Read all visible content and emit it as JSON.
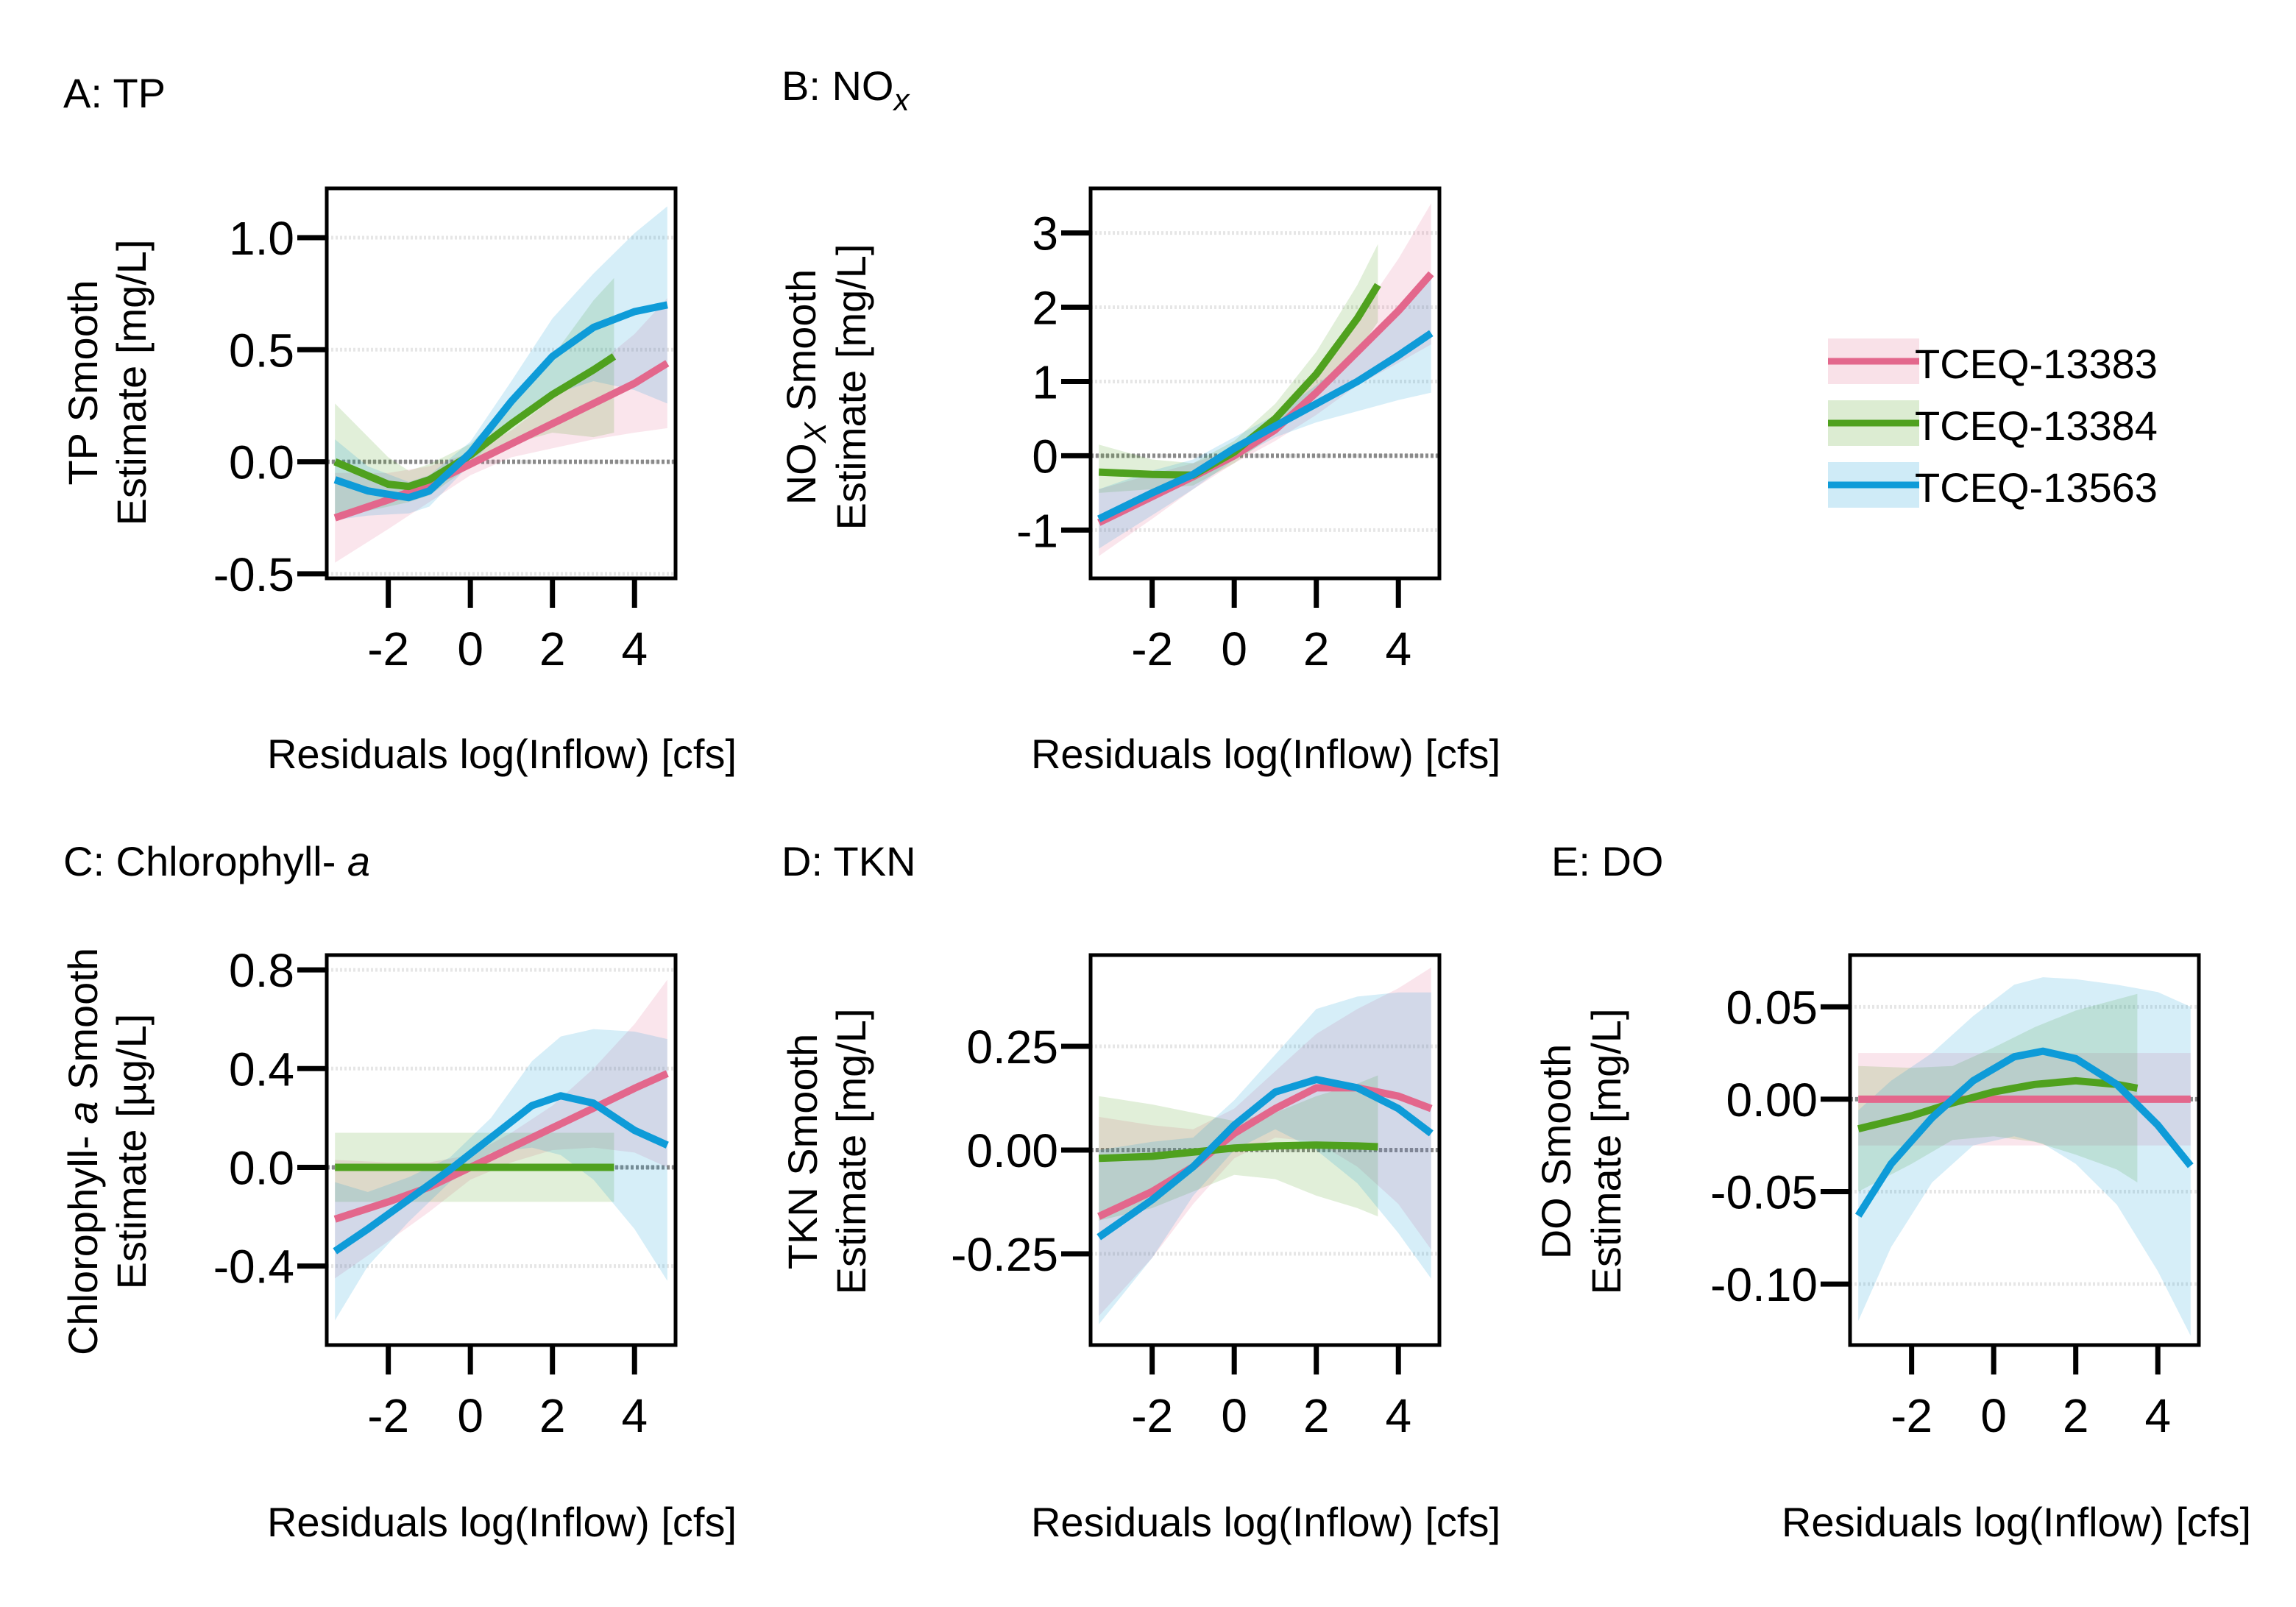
{
  "colors": {
    "TCEQ-13383": "#E3678C",
    "TCEQ-13384": "#4FA11E",
    "TCEQ-13563": "#0E9BD8",
    "axis": "#000000",
    "zero_line": "#8a8a8a",
    "grid": "#e6e6e6"
  },
  "legend": {
    "items": [
      {
        "name": "TCEQ-13383",
        "color": "#E3678C"
      },
      {
        "name": "TCEQ-13384",
        "color": "#4FA11E"
      },
      {
        "name": "TCEQ-13563",
        "color": "#0E9BD8"
      }
    ],
    "placement": "right"
  },
  "chart_data": [
    {
      "type": "line",
      "panel": "A",
      "title": "A: TP",
      "ylabel_line1": "TP Smooth",
      "ylabel_line2": "Estimate [mg/L]",
      "xlabel": "Residuals log(Inflow) [cfs]",
      "xlim": [
        -3.5,
        5.0
      ],
      "ylim": [
        -0.52,
        1.22
      ],
      "xticks": [
        -2,
        0,
        2,
        4
      ],
      "xtick_labels": [
        "-2",
        "0",
        "2",
        "4"
      ],
      "yticks": [
        -0.5,
        0.0,
        0.5,
        1.0
      ],
      "ytick_labels": [
        "-0.5",
        "0.0",
        "0.5",
        "1.0"
      ],
      "grid": "horizontal",
      "series": [
        {
          "name": "TCEQ-13383",
          "x": [
            -3.3,
            -2,
            -1,
            0,
            1,
            2,
            3,
            4,
            4.8
          ],
          "y": [
            -0.25,
            -0.17,
            -0.1,
            -0.01,
            0.08,
            0.17,
            0.26,
            0.35,
            0.44
          ],
          "lower": [
            -0.45,
            -0.3,
            -0.18,
            -0.06,
            0.02,
            0.06,
            0.1,
            0.13,
            0.15
          ],
          "upper": [
            -0.05,
            -0.05,
            -0.02,
            0.04,
            0.14,
            0.28,
            0.42,
            0.57,
            0.73
          ]
        },
        {
          "name": "TCEQ-13384",
          "x": [
            -3.3,
            -2,
            -1.5,
            -1,
            0,
            1,
            2,
            3,
            3.5
          ],
          "y": [
            0.0,
            -0.1,
            -0.11,
            -0.08,
            0.03,
            0.17,
            0.3,
            0.41,
            0.47
          ],
          "lower": [
            -0.25,
            -0.2,
            -0.18,
            -0.15,
            -0.02,
            0.08,
            0.13,
            0.11,
            0.13
          ],
          "upper": [
            0.26,
            0.02,
            -0.04,
            -0.01,
            0.08,
            0.26,
            0.47,
            0.72,
            0.82
          ]
        },
        {
          "name": "TCEQ-13563",
          "x": [
            -3.3,
            -2.5,
            -1.5,
            -1,
            0,
            1,
            2,
            3,
            4,
            4.8
          ],
          "y": [
            -0.08,
            -0.13,
            -0.16,
            -0.13,
            0.04,
            0.27,
            0.47,
            0.6,
            0.67,
            0.7
          ],
          "lower": [
            -0.26,
            -0.24,
            -0.23,
            -0.2,
            -0.01,
            0.18,
            0.3,
            0.36,
            0.32,
            0.26
          ],
          "upper": [
            0.1,
            -0.02,
            -0.09,
            -0.06,
            0.09,
            0.36,
            0.64,
            0.84,
            1.02,
            1.14
          ]
        }
      ]
    },
    {
      "type": "line",
      "panel": "B",
      "title_main": "B: NO",
      "title_sub": "x",
      "ylabel_line1_main": "NO",
      "ylabel_line1_sub": "X",
      "ylabel_line1_rest": " Smooth",
      "ylabel_line2": "Estimate [mg/L]",
      "xlabel": "Residuals log(Inflow) [cfs]",
      "xlim": [
        -3.5,
        5.0
      ],
      "ylim": [
        -1.65,
        3.6
      ],
      "xticks": [
        -2,
        0,
        2,
        4
      ],
      "xtick_labels": [
        "-2",
        "0",
        "2",
        "4"
      ],
      "yticks": [
        -1,
        0,
        1,
        2,
        3
      ],
      "ytick_labels": [
        "-1",
        "0",
        "1",
        "2",
        "3"
      ],
      "grid": "horizontal",
      "series": [
        {
          "name": "TCEQ-13383",
          "x": [
            -3.3,
            -2,
            -1,
            0,
            1,
            2,
            3,
            4,
            4.8
          ],
          "y": [
            -0.9,
            -0.55,
            -0.28,
            0.0,
            0.35,
            0.85,
            1.4,
            1.95,
            2.45
          ],
          "lower": [
            -1.35,
            -0.85,
            -0.45,
            -0.1,
            0.2,
            0.55,
            0.95,
            1.25,
            1.5
          ],
          "upper": [
            -0.45,
            -0.25,
            -0.1,
            0.1,
            0.5,
            1.15,
            1.85,
            2.65,
            3.4
          ]
        },
        {
          "name": "TCEQ-13384",
          "x": [
            -3.3,
            -2,
            -1,
            0,
            1,
            2,
            3,
            3.5
          ],
          "y": [
            -0.22,
            -0.25,
            -0.26,
            0.05,
            0.5,
            1.1,
            1.85,
            2.3
          ],
          "lower": [
            -0.5,
            -0.45,
            -0.4,
            -0.1,
            0.3,
            0.8,
            1.4,
            1.8
          ],
          "upper": [
            0.15,
            -0.05,
            -0.1,
            0.2,
            0.7,
            1.4,
            2.3,
            2.85
          ]
        },
        {
          "name": "TCEQ-13563",
          "x": [
            -3.3,
            -2,
            -1,
            0,
            1,
            2,
            3,
            4,
            4.8
          ],
          "y": [
            -0.85,
            -0.5,
            -0.25,
            0.1,
            0.4,
            0.7,
            1.0,
            1.35,
            1.65
          ],
          "lower": [
            -1.25,
            -0.8,
            -0.45,
            -0.05,
            0.25,
            0.45,
            0.6,
            0.75,
            0.85
          ],
          "upper": [
            -0.45,
            -0.2,
            -0.05,
            0.25,
            0.55,
            0.95,
            1.4,
            1.95,
            2.45
          ]
        }
      ]
    },
    {
      "type": "line",
      "panel": "C",
      "title_main": "C: Chlorophyll- ",
      "title_italic": "a",
      "ylabel_line1_main": "Chlorophyll- ",
      "ylabel_line1_italic": "a",
      "ylabel_line1_rest": " Smooth",
      "ylabel_line2": "Estimate [µg/L]",
      "xlabel": "Residuals log(Inflow) [cfs]",
      "xlim": [
        -3.5,
        5.0
      ],
      "ylim": [
        -0.72,
        0.86
      ],
      "xticks": [
        -2,
        0,
        2,
        4
      ],
      "xtick_labels": [
        "-2",
        "0",
        "2",
        "4"
      ],
      "yticks": [
        -0.4,
        0.0,
        0.4,
        0.8
      ],
      "ytick_labels": [
        "-0.4",
        "0.0",
        "0.4",
        "0.8"
      ],
      "grid": "horizontal",
      "series": [
        {
          "name": "TCEQ-13383",
          "x": [
            -3.3,
            -2,
            -1,
            0,
            1,
            2,
            3,
            4,
            4.8
          ],
          "y": [
            -0.21,
            -0.14,
            -0.08,
            0.0,
            0.08,
            0.16,
            0.24,
            0.32,
            0.38
          ],
          "lower": [
            -0.45,
            -0.3,
            -0.18,
            -0.05,
            0.02,
            0.07,
            0.08,
            0.06,
            0.0
          ],
          "upper": [
            0.03,
            0.02,
            0.02,
            0.05,
            0.14,
            0.25,
            0.4,
            0.58,
            0.76
          ]
        },
        {
          "name": "TCEQ-13384",
          "x": [
            -3.3,
            -2,
            -1,
            0,
            1,
            2,
            3,
            3.5
          ],
          "y": [
            0.0,
            0.0,
            0.0,
            0.0,
            0.0,
            0.0,
            0.0,
            0.0
          ],
          "lower": [
            -0.14,
            -0.14,
            -0.14,
            -0.14,
            -0.14,
            -0.14,
            -0.14,
            -0.14
          ],
          "upper": [
            0.14,
            0.14,
            0.14,
            0.14,
            0.14,
            0.14,
            0.14,
            0.14
          ]
        },
        {
          "name": "TCEQ-13563",
          "x": [
            -3.3,
            -2.5,
            -1.5,
            -0.5,
            0.5,
            1.5,
            2.2,
            3,
            4,
            4.8
          ],
          "y": [
            -0.34,
            -0.25,
            -0.13,
            -0.01,
            0.12,
            0.25,
            0.29,
            0.26,
            0.15,
            0.09
          ],
          "lower": [
            -0.62,
            -0.4,
            -0.22,
            -0.06,
            0.06,
            0.08,
            0.05,
            -0.05,
            -0.25,
            -0.46
          ],
          "upper": [
            -0.06,
            -0.1,
            -0.04,
            0.04,
            0.2,
            0.43,
            0.53,
            0.56,
            0.55,
            0.52
          ]
        }
      ]
    },
    {
      "type": "line",
      "panel": "D",
      "title": "D: TKN",
      "ylabel_line1": "TKN Smooth",
      "ylabel_line2": "Estimate [mg/L]",
      "xlabel": "Residuals log(Inflow) [cfs]",
      "xlim": [
        -3.5,
        5.0
      ],
      "ylim": [
        -0.47,
        0.47
      ],
      "xticks": [
        -2,
        0,
        2,
        4
      ],
      "xtick_labels": [
        "-2",
        "0",
        "2",
        "4"
      ],
      "yticks": [
        -0.25,
        0.0,
        0.25
      ],
      "ytick_labels": [
        "-0.25",
        "0.00",
        "0.25"
      ],
      "grid": "horizontal",
      "series": [
        {
          "name": "TCEQ-13383",
          "x": [
            -3.3,
            -2,
            -1,
            0,
            1,
            2,
            3,
            4,
            4.8
          ],
          "y": [
            -0.16,
            -0.1,
            -0.04,
            0.04,
            0.1,
            0.15,
            0.15,
            0.13,
            0.1
          ],
          "lower": [
            -0.4,
            -0.26,
            -0.13,
            -0.02,
            0.03,
            0.02,
            -0.04,
            -0.13,
            -0.24
          ],
          "upper": [
            0.08,
            0.06,
            0.05,
            0.1,
            0.19,
            0.28,
            0.34,
            0.39,
            0.44
          ]
        },
        {
          "name": "TCEQ-13384",
          "x": [
            -3.3,
            -2,
            -1,
            0,
            1,
            2,
            3,
            3.5
          ],
          "y": [
            -0.02,
            -0.015,
            -0.005,
            0.005,
            0.01,
            0.012,
            0.01,
            0.008
          ],
          "lower": [
            -0.17,
            -0.14,
            -0.1,
            -0.06,
            -0.07,
            -0.11,
            -0.14,
            -0.16
          ],
          "upper": [
            0.13,
            0.11,
            0.09,
            0.07,
            0.09,
            0.13,
            0.16,
            0.18
          ]
        },
        {
          "name": "TCEQ-13563",
          "x": [
            -3.3,
            -2,
            -1,
            0,
            1,
            2,
            3,
            4,
            4.8
          ],
          "y": [
            -0.21,
            -0.12,
            -0.04,
            0.06,
            0.14,
            0.17,
            0.15,
            0.1,
            0.04
          ],
          "lower": [
            -0.42,
            -0.26,
            -0.11,
            0.0,
            0.05,
            0.0,
            -0.08,
            -0.2,
            -0.31
          ],
          "upper": [
            0.0,
            0.02,
            0.03,
            0.12,
            0.23,
            0.34,
            0.37,
            0.38,
            0.38
          ]
        }
      ]
    },
    {
      "type": "line",
      "panel": "E",
      "title": "E: DO",
      "ylabel_line1": "DO Smooth",
      "ylabel_line2": "Estimate [mg/L]",
      "xlabel": "Residuals log(Inflow) [cfs]",
      "xlim": [
        -3.5,
        5.0
      ],
      "ylim": [
        -0.133,
        0.078
      ],
      "xticks": [
        -2,
        0,
        2,
        4
      ],
      "xtick_labels": [
        "-2",
        "0",
        "2",
        "4"
      ],
      "yticks": [
        -0.1,
        -0.05,
        0.0,
        0.05
      ],
      "ytick_labels": [
        "-0.10",
        "-0.05",
        "0.00",
        "0.05"
      ],
      "grid": "horizontal",
      "series": [
        {
          "name": "TCEQ-13383",
          "x": [
            -3.3,
            0,
            4.8
          ],
          "y": [
            0.0,
            0.0,
            0.0
          ],
          "lower": [
            -0.025,
            -0.025,
            -0.025
          ],
          "upper": [
            0.025,
            0.025,
            0.025
          ]
        },
        {
          "name": "TCEQ-13384",
          "x": [
            -3.3,
            -2,
            -1,
            0,
            1,
            2,
            3,
            3.5
          ],
          "y": [
            -0.016,
            -0.009,
            -0.002,
            0.004,
            0.008,
            0.01,
            0.008,
            0.006
          ],
          "lower": [
            -0.05,
            -0.035,
            -0.022,
            -0.02,
            -0.023,
            -0.03,
            -0.038,
            -0.045
          ],
          "upper": [
            0.018,
            0.017,
            0.018,
            0.028,
            0.039,
            0.048,
            0.054,
            0.057
          ]
        },
        {
          "name": "TCEQ-13563",
          "x": [
            -3.3,
            -2.5,
            -1.5,
            -0.5,
            0.5,
            1.2,
            2,
            3,
            4,
            4.8
          ],
          "y": [
            -0.063,
            -0.035,
            -0.01,
            0.01,
            0.023,
            0.026,
            0.022,
            0.008,
            -0.014,
            -0.036
          ],
          "lower": [
            -0.12,
            -0.08,
            -0.045,
            -0.025,
            -0.02,
            -0.024,
            -0.035,
            -0.057,
            -0.093,
            -0.128
          ],
          "upper": [
            -0.006,
            0.01,
            0.025,
            0.045,
            0.062,
            0.066,
            0.065,
            0.062,
            0.058,
            0.05
          ]
        }
      ]
    }
  ]
}
